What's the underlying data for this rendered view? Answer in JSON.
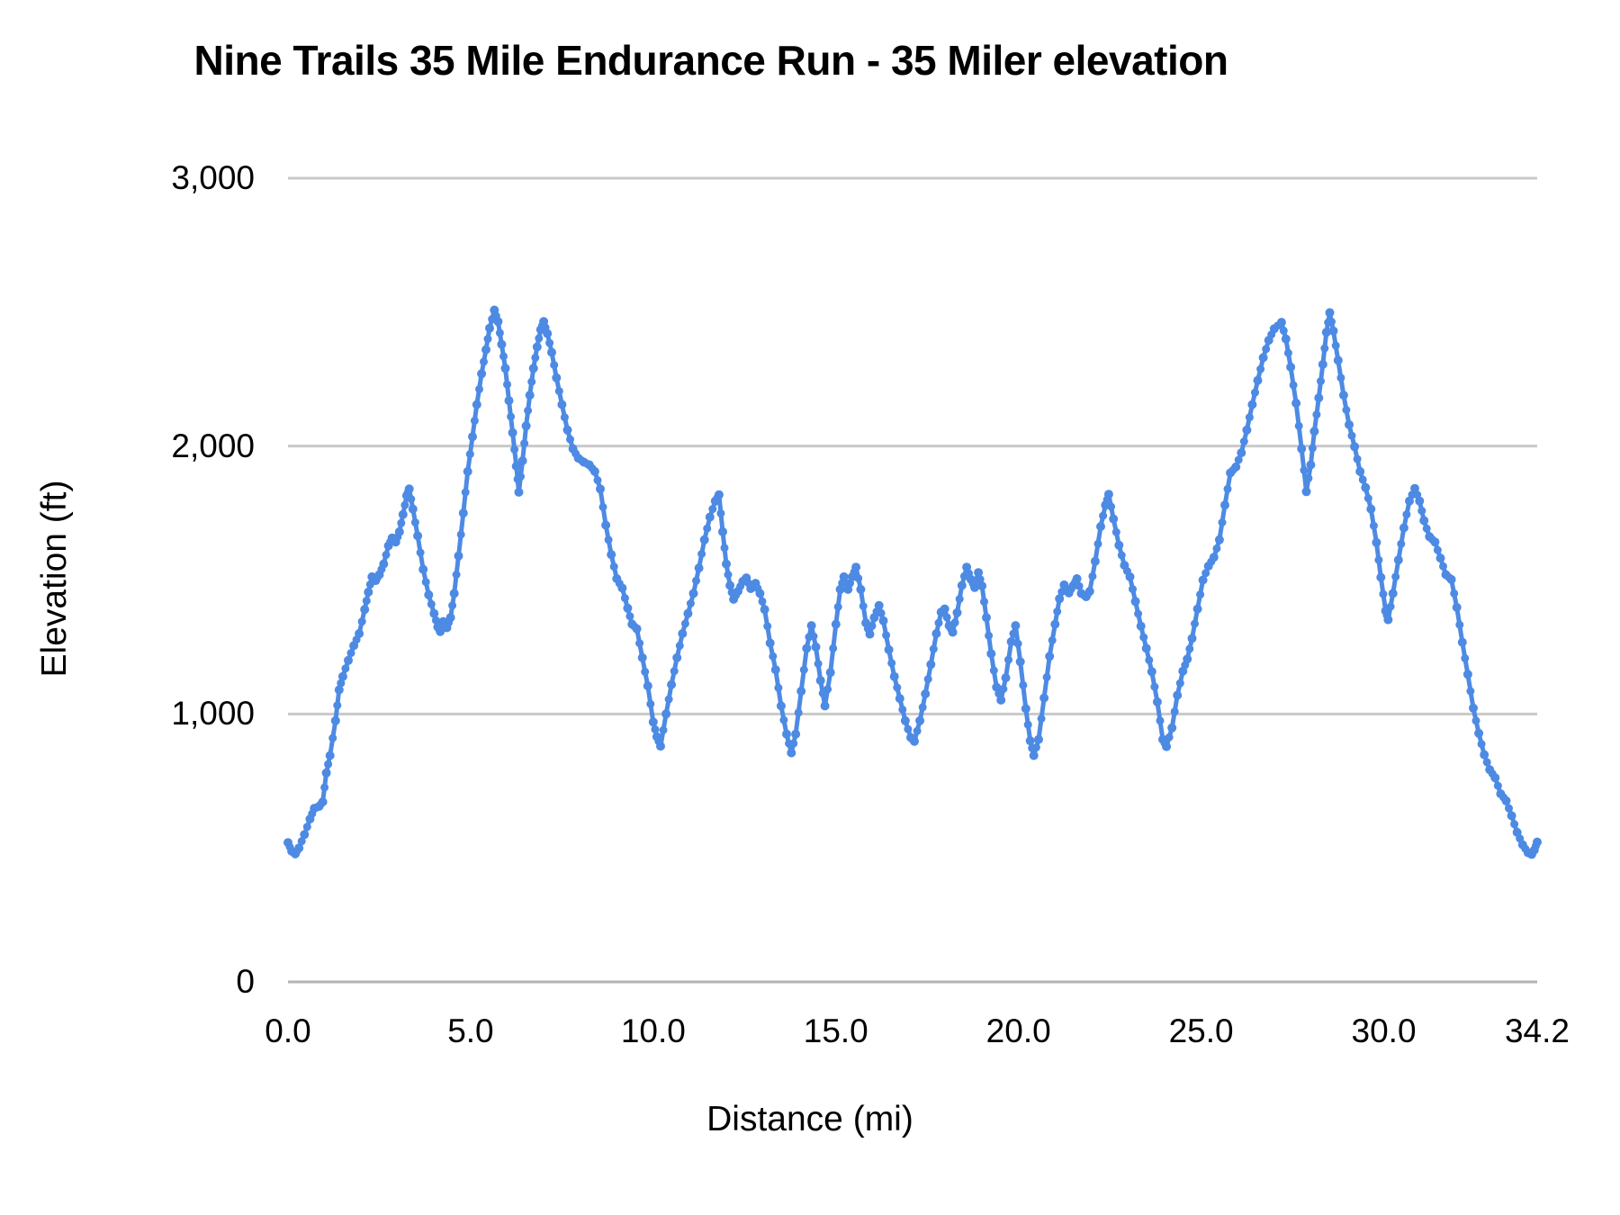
{
  "chart_data": {
    "type": "line",
    "title": "Nine Trails 35 Mile Endurance Run - 35 Miler elevation",
    "xlabel": "Distance (mi)",
    "ylabel": "Elevation (ft)",
    "xlim": [
      0,
      34.2
    ],
    "ylim": [
      0,
      3000
    ],
    "grid": true,
    "legend": "none",
    "line_color": "#4d8ae4",
    "gridline_color": "#c9c9c9",
    "baseline_color": "#b3b3b3",
    "marker": "point",
    "x_ticks": [
      {
        "value": 0,
        "label": "0.0"
      },
      {
        "value": 5,
        "label": "5.0"
      },
      {
        "value": 10,
        "label": "10.0"
      },
      {
        "value": 15,
        "label": "15.0"
      },
      {
        "value": 20,
        "label": "20.0"
      },
      {
        "value": 25,
        "label": "25.0"
      },
      {
        "value": 30,
        "label": "30.0"
      },
      {
        "value": 34.2,
        "label": "34.2"
      }
    ],
    "y_ticks": [
      {
        "value": 0,
        "label": "0"
      },
      {
        "value": 1000,
        "label": "1,000"
      },
      {
        "value": 2000,
        "label": "2,000"
      },
      {
        "value": 3000,
        "label": "3,000"
      }
    ],
    "series": [
      {
        "name": "Elevation (ft)",
        "points": [
          [
            0,
            520
          ],
          [
            0.1,
            488
          ],
          [
            0.2,
            478
          ],
          [
            0.3,
            500
          ],
          [
            0.45,
            550
          ],
          [
            0.6,
            608
          ],
          [
            0.72,
            648
          ],
          [
            0.85,
            655
          ],
          [
            0.95,
            672
          ],
          [
            1.05,
            780
          ],
          [
            1.15,
            845
          ],
          [
            1.3,
            975
          ],
          [
            1.4,
            1090
          ],
          [
            1.5,
            1140
          ],
          [
            1.65,
            1200
          ],
          [
            1.8,
            1255
          ],
          [
            1.95,
            1300
          ],
          [
            2.1,
            1390
          ],
          [
            2.2,
            1455
          ],
          [
            2.3,
            1512
          ],
          [
            2.4,
            1498
          ],
          [
            2.5,
            1520
          ],
          [
            2.62,
            1560
          ],
          [
            2.75,
            1628
          ],
          [
            2.85,
            1657
          ],
          [
            2.95,
            1642
          ],
          [
            3.05,
            1680
          ],
          [
            3.15,
            1745
          ],
          [
            3.25,
            1815
          ],
          [
            3.32,
            1840
          ],
          [
            3.42,
            1765
          ],
          [
            3.55,
            1665
          ],
          [
            3.7,
            1540
          ],
          [
            3.85,
            1445
          ],
          [
            4,
            1375
          ],
          [
            4.1,
            1325
          ],
          [
            4.17,
            1308
          ],
          [
            4.25,
            1345
          ],
          [
            4.35,
            1322
          ],
          [
            4.45,
            1360
          ],
          [
            4.55,
            1450
          ],
          [
            4.67,
            1590
          ],
          [
            4.8,
            1750
          ],
          [
            4.92,
            1905
          ],
          [
            5.05,
            2035
          ],
          [
            5.17,
            2155
          ],
          [
            5.3,
            2270
          ],
          [
            5.42,
            2360
          ],
          [
            5.52,
            2440
          ],
          [
            5.65,
            2508
          ],
          [
            5.75,
            2465
          ],
          [
            5.85,
            2380
          ],
          [
            5.95,
            2290
          ],
          [
            6.05,
            2170
          ],
          [
            6.15,
            2050
          ],
          [
            6.25,
            1925
          ],
          [
            6.32,
            1828
          ],
          [
            6.42,
            1945
          ],
          [
            6.52,
            2075
          ],
          [
            6.62,
            2190
          ],
          [
            6.72,
            2290
          ],
          [
            6.82,
            2370
          ],
          [
            6.92,
            2435
          ],
          [
            7,
            2465
          ],
          [
            7.1,
            2420
          ],
          [
            7.22,
            2350
          ],
          [
            7.35,
            2255
          ],
          [
            7.5,
            2155
          ],
          [
            7.65,
            2060
          ],
          [
            7.8,
            1990
          ],
          [
            7.95,
            1955
          ],
          [
            8.1,
            1940
          ],
          [
            8.25,
            1930
          ],
          [
            8.4,
            1905
          ],
          [
            8.55,
            1840
          ],
          [
            8.7,
            1705
          ],
          [
            8.85,
            1595
          ],
          [
            9,
            1505
          ],
          [
            9.15,
            1470
          ],
          [
            9.3,
            1395
          ],
          [
            9.42,
            1335
          ],
          [
            9.55,
            1318
          ],
          [
            9.7,
            1210
          ],
          [
            9.85,
            1105
          ],
          [
            10,
            970
          ],
          [
            10.1,
            915
          ],
          [
            10.2,
            880
          ],
          [
            10.35,
            1000
          ],
          [
            10.5,
            1110
          ],
          [
            10.65,
            1210
          ],
          [
            10.8,
            1300
          ],
          [
            10.95,
            1375
          ],
          [
            11.1,
            1450
          ],
          [
            11.25,
            1545
          ],
          [
            11.4,
            1650
          ],
          [
            11.55,
            1735
          ],
          [
            11.7,
            1795
          ],
          [
            11.8,
            1818
          ],
          [
            11.9,
            1680
          ],
          [
            12,
            1560
          ],
          [
            12.1,
            1480
          ],
          [
            12.2,
            1428
          ],
          [
            12.32,
            1458
          ],
          [
            12.45,
            1495
          ],
          [
            12.55,
            1508
          ],
          [
            12.67,
            1468
          ],
          [
            12.8,
            1488
          ],
          [
            12.92,
            1450
          ],
          [
            13.05,
            1390
          ],
          [
            13.2,
            1265
          ],
          [
            13.35,
            1165
          ],
          [
            13.5,
            1030
          ],
          [
            13.65,
            925
          ],
          [
            13.78,
            855
          ],
          [
            13.9,
            925
          ],
          [
            14.05,
            1085
          ],
          [
            14.2,
            1245
          ],
          [
            14.33,
            1330
          ],
          [
            14.45,
            1250
          ],
          [
            14.58,
            1125
          ],
          [
            14.7,
            1030
          ],
          [
            14.85,
            1155
          ],
          [
            15,
            1335
          ],
          [
            15.12,
            1465
          ],
          [
            15.22,
            1512
          ],
          [
            15.33,
            1465
          ],
          [
            15.45,
            1512
          ],
          [
            15.55,
            1548
          ],
          [
            15.68,
            1465
          ],
          [
            15.82,
            1340
          ],
          [
            15.93,
            1298
          ],
          [
            16.05,
            1360
          ],
          [
            16.18,
            1405
          ],
          [
            16.3,
            1348
          ],
          [
            16.45,
            1240
          ],
          [
            16.6,
            1140
          ],
          [
            16.75,
            1058
          ],
          [
            16.9,
            975
          ],
          [
            17.05,
            912
          ],
          [
            17.15,
            898
          ],
          [
            17.3,
            975
          ],
          [
            17.45,
            1075
          ],
          [
            17.6,
            1185
          ],
          [
            17.75,
            1300
          ],
          [
            17.88,
            1380
          ],
          [
            17.98,
            1392
          ],
          [
            18.1,
            1330
          ],
          [
            18.2,
            1305
          ],
          [
            18.32,
            1378
          ],
          [
            18.45,
            1480
          ],
          [
            18.58,
            1548
          ],
          [
            18.7,
            1502
          ],
          [
            18.8,
            1472
          ],
          [
            18.9,
            1528
          ],
          [
            19,
            1478
          ],
          [
            19.12,
            1360
          ],
          [
            19.25,
            1225
          ],
          [
            19.4,
            1100
          ],
          [
            19.52,
            1052
          ],
          [
            19.65,
            1135
          ],
          [
            19.8,
            1270
          ],
          [
            19.92,
            1330
          ],
          [
            20.05,
            1195
          ],
          [
            20.2,
            1020
          ],
          [
            20.32,
            900
          ],
          [
            20.42,
            845
          ],
          [
            20.55,
            905
          ],
          [
            20.7,
            1060
          ],
          [
            20.85,
            1215
          ],
          [
            21,
            1335
          ],
          [
            21.12,
            1430
          ],
          [
            21.25,
            1482
          ],
          [
            21.38,
            1452
          ],
          [
            21.5,
            1480
          ],
          [
            21.6,
            1505
          ],
          [
            21.72,
            1450
          ],
          [
            21.85,
            1438
          ],
          [
            21.95,
            1458
          ],
          [
            22.1,
            1570
          ],
          [
            22.25,
            1700
          ],
          [
            22.38,
            1780
          ],
          [
            22.47,
            1820
          ],
          [
            22.6,
            1728
          ],
          [
            22.75,
            1630
          ],
          [
            22.9,
            1555
          ],
          [
            23.05,
            1512
          ],
          [
            23.2,
            1420
          ],
          [
            23.35,
            1328
          ],
          [
            23.5,
            1245
          ],
          [
            23.65,
            1158
          ],
          [
            23.8,
            1045
          ],
          [
            23.95,
            905
          ],
          [
            24.05,
            878
          ],
          [
            24.2,
            948
          ],
          [
            24.35,
            1070
          ],
          [
            24.5,
            1160
          ],
          [
            24.62,
            1205
          ],
          [
            24.75,
            1282
          ],
          [
            24.9,
            1392
          ],
          [
            25.05,
            1500
          ],
          [
            25.2,
            1552
          ],
          [
            25.35,
            1585
          ],
          [
            25.5,
            1650
          ],
          [
            25.65,
            1780
          ],
          [
            25.8,
            1900
          ],
          [
            25.95,
            1922
          ],
          [
            26.1,
            1975
          ],
          [
            26.25,
            2060
          ],
          [
            26.4,
            2155
          ],
          [
            26.55,
            2245
          ],
          [
            26.7,
            2330
          ],
          [
            26.85,
            2395
          ],
          [
            27,
            2438
          ],
          [
            27.2,
            2462
          ],
          [
            27.32,
            2400
          ],
          [
            27.45,
            2295
          ],
          [
            27.6,
            2160
          ],
          [
            27.75,
            1990
          ],
          [
            27.88,
            1830
          ],
          [
            28,
            1930
          ],
          [
            28.1,
            2055
          ],
          [
            28.22,
            2180
          ],
          [
            28.33,
            2305
          ],
          [
            28.43,
            2425
          ],
          [
            28.52,
            2498
          ],
          [
            28.62,
            2430
          ],
          [
            28.75,
            2320
          ],
          [
            28.9,
            2190
          ],
          [
            29.05,
            2080
          ],
          [
            29.2,
            1998
          ],
          [
            29.35,
            1905
          ],
          [
            29.5,
            1845
          ],
          [
            29.65,
            1765
          ],
          [
            29.8,
            1640
          ],
          [
            29.92,
            1510
          ],
          [
            30.05,
            1385
          ],
          [
            30.12,
            1352
          ],
          [
            30.25,
            1450
          ],
          [
            30.4,
            1575
          ],
          [
            30.55,
            1695
          ],
          [
            30.7,
            1795
          ],
          [
            30.85,
            1842
          ],
          [
            30.98,
            1795
          ],
          [
            31.1,
            1722
          ],
          [
            31.25,
            1662
          ],
          [
            31.4,
            1642
          ],
          [
            31.55,
            1582
          ],
          [
            31.7,
            1520
          ],
          [
            31.85,
            1502
          ],
          [
            32,
            1398
          ],
          [
            32.15,
            1268
          ],
          [
            32.3,
            1148
          ],
          [
            32.45,
            1022
          ],
          [
            32.6,
            928
          ],
          [
            32.75,
            848
          ],
          [
            32.9,
            792
          ],
          [
            33.05,
            762
          ],
          [
            33.2,
            702
          ],
          [
            33.35,
            676
          ],
          [
            33.5,
            620
          ],
          [
            33.65,
            558
          ],
          [
            33.8,
            512
          ],
          [
            33.95,
            482
          ],
          [
            34.05,
            476
          ],
          [
            34.12,
            492
          ],
          [
            34.2,
            522
          ]
        ]
      }
    ]
  }
}
